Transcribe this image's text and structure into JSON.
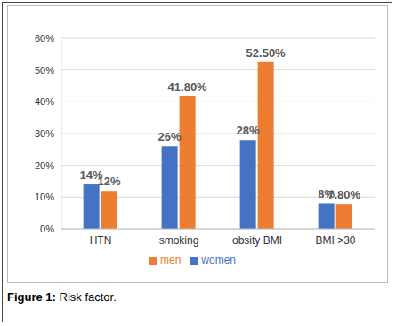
{
  "chart_data": {
    "type": "bar",
    "title": "Figure 1: Risk factor.",
    "categories": [
      "HTN",
      "smoking",
      "obsity BMI",
      "BMI >30"
    ],
    "series": [
      {
        "name": "women",
        "color": "#4472c4",
        "values": [
          14,
          26,
          28,
          8
        ],
        "value_labels": [
          "14%",
          "26%",
          "28%",
          "8%"
        ]
      },
      {
        "name": "men",
        "color": "#ed7d31",
        "values": [
          12,
          41.8,
          52.5,
          7.8
        ],
        "value_labels": [
          "12%",
          "41.80%",
          "52.50%",
          "7.80%"
        ]
      }
    ],
    "ylim": [
      0,
      60
    ],
    "yticks": [
      {
        "value": 0,
        "label": "0%"
      },
      {
        "value": 10,
        "label": "10%"
      },
      {
        "value": 20,
        "label": "20%"
      },
      {
        "value": 30,
        "label": "30%"
      },
      {
        "value": 40,
        "label": "40%"
      },
      {
        "value": 50,
        "label": "50%"
      },
      {
        "value": 60,
        "label": "60%"
      }
    ],
    "grid": true,
    "legend": "bottom",
    "data_labels": true
  }
}
